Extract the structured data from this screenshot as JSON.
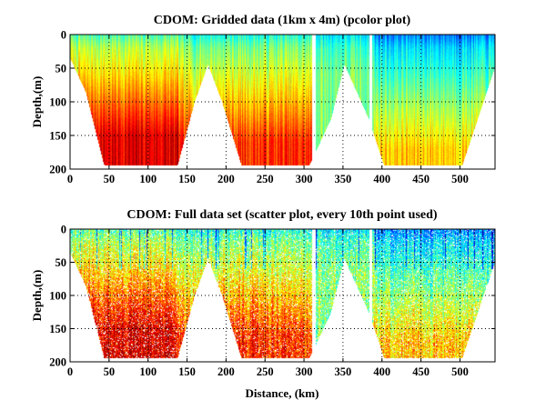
{
  "chart_data": [
    {
      "type": "heatmap",
      "title": "CDOM: Gridded data (1km x 4m) (pcolor plot)",
      "xlabel": "",
      "ylabel": "Depth,(m)",
      "xlim": [
        0,
        545
      ],
      "ylim": [
        0,
        200
      ],
      "y_reversed": true,
      "xticks": [
        0,
        50,
        100,
        150,
        200,
        250,
        300,
        350,
        400,
        450,
        500
      ],
      "yticks": [
        0,
        50,
        100,
        150,
        200
      ],
      "grid": true,
      "colormap": "jet",
      "data_gaps_km": [
        [
          310,
          315
        ],
        [
          384,
          388
        ]
      ],
      "bottom_profile": [
        {
          "x": 0,
          "depth": 35
        },
        {
          "x": 20,
          "depth": 85
        },
        {
          "x": 44,
          "depth": 195
        },
        {
          "x": 138,
          "depth": 195
        },
        {
          "x": 160,
          "depth": 100
        },
        {
          "x": 177,
          "depth": 45
        },
        {
          "x": 195,
          "depth": 100
        },
        {
          "x": 220,
          "depth": 195
        },
        {
          "x": 307,
          "depth": 195
        },
        {
          "x": 335,
          "depth": 125
        },
        {
          "x": 352,
          "depth": 45
        },
        {
          "x": 383,
          "depth": 125
        },
        {
          "x": 403,
          "depth": 195
        },
        {
          "x": 503,
          "depth": 195
        },
        {
          "x": 545,
          "depth": 50
        }
      ],
      "value_description": "high CDOM (red) at depth in western basins, low (blue) near surface in eastern section"
    },
    {
      "type": "scatter",
      "title": "CDOM: Full data set (scatter plot, every 10th point used)",
      "xlabel": "Distance, (km)",
      "ylabel": "Depth,(m)",
      "xlim": [
        0,
        545
      ],
      "ylim": [
        0,
        200
      ],
      "y_reversed": true,
      "xticks": [
        0,
        50,
        100,
        150,
        200,
        250,
        300,
        350,
        400,
        450,
        500
      ],
      "yticks": [
        0,
        50,
        100,
        150,
        200
      ],
      "grid": true,
      "colormap": "jet",
      "data_gaps_km": [
        [
          310,
          315
        ],
        [
          384,
          388
        ]
      ],
      "bottom_profile": [
        {
          "x": 0,
          "depth": 35
        },
        {
          "x": 20,
          "depth": 85
        },
        {
          "x": 44,
          "depth": 195
        },
        {
          "x": 138,
          "depth": 195
        },
        {
          "x": 160,
          "depth": 100
        },
        {
          "x": 177,
          "depth": 45
        },
        {
          "x": 195,
          "depth": 100
        },
        {
          "x": 220,
          "depth": 195
        },
        {
          "x": 307,
          "depth": 195
        },
        {
          "x": 335,
          "depth": 125
        },
        {
          "x": 352,
          "depth": 45
        },
        {
          "x": 383,
          "depth": 125
        },
        {
          "x": 403,
          "depth": 195
        },
        {
          "x": 503,
          "depth": 195
        },
        {
          "x": 545,
          "depth": 50
        }
      ],
      "value_description": "sampled points colored by CDOM on jet colormap"
    }
  ]
}
